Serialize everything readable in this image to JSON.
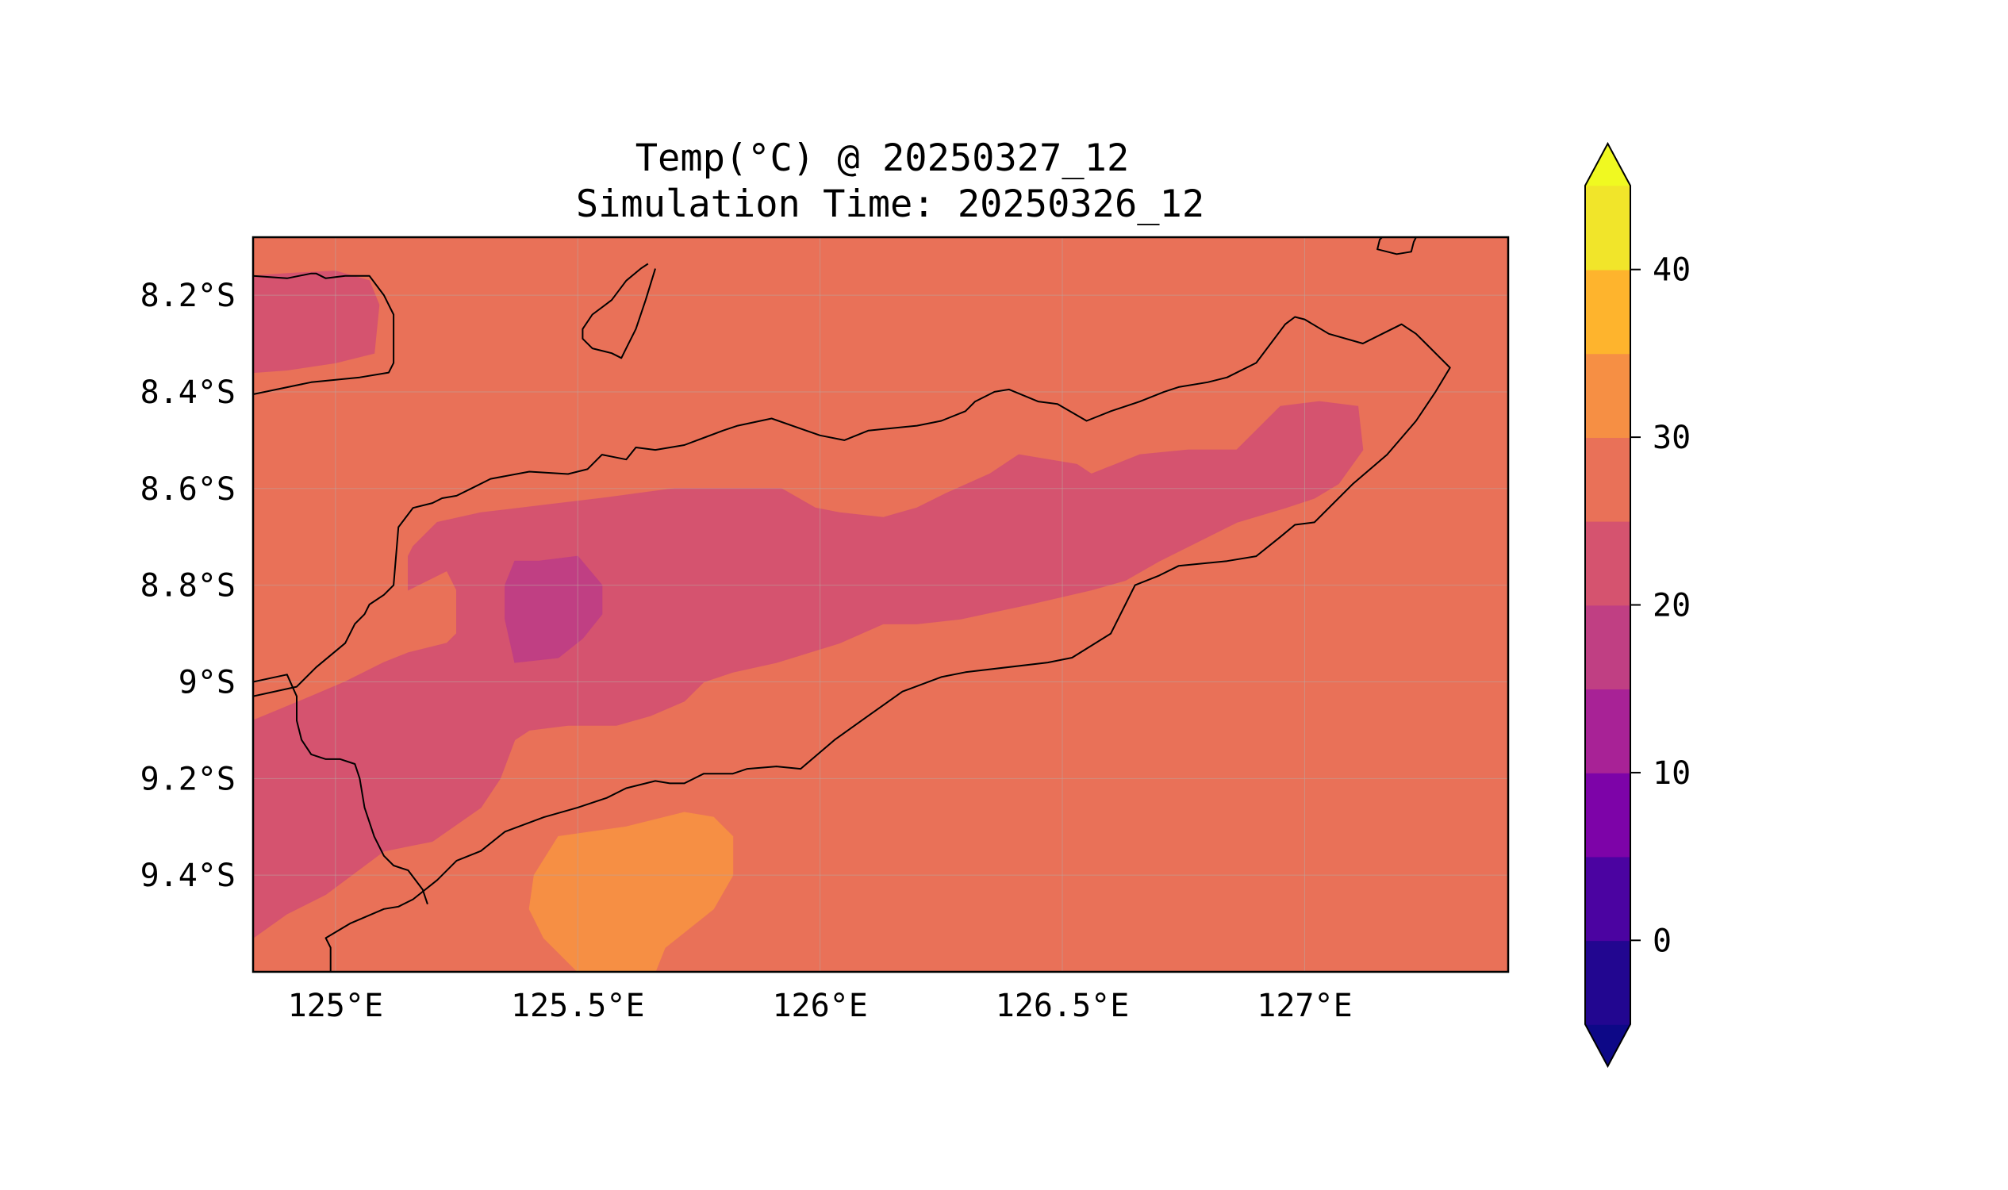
{
  "chart_data": {
    "type": "filled-contour-map",
    "title": "Temp(°C) @ 20250327_12",
    "subtitle": "Simulation Time: 20250326_12",
    "xlabel": "",
    "ylabel": "",
    "x_ticks": [
      {
        "value": 125.0,
        "label": "125°E"
      },
      {
        "value": 125.5,
        "label": "125.5°E"
      },
      {
        "value": 126.0,
        "label": "126°E"
      },
      {
        "value": 126.5,
        "label": "126.5°E"
      },
      {
        "value": 127.0,
        "label": "127°E"
      }
    ],
    "y_ticks": [
      {
        "value": -8.2,
        "label": "8.2°S"
      },
      {
        "value": -8.4,
        "label": "8.4°S"
      },
      {
        "value": -8.6,
        "label": "8.6°S"
      },
      {
        "value": -8.8,
        "label": "8.8°S"
      },
      {
        "value": -9.0,
        "label": "9°S"
      },
      {
        "value": -9.2,
        "label": "9.2°S"
      },
      {
        "value": -9.4,
        "label": "9.4°S"
      }
    ],
    "xlim": [
      124.83,
      127.42
    ],
    "ylim": [
      -9.6,
      -8.08
    ],
    "grid": true,
    "colormap": "plasma",
    "colorbar": {
      "extend": "both",
      "levels": [
        -5,
        0,
        5,
        10,
        15,
        20,
        25,
        30,
        35,
        40,
        45
      ],
      "colors": [
        "#0d0887",
        "#220690",
        "#4b03a1",
        "#7d03a8",
        "#a82296",
        "#c03f83",
        "#d5536f",
        "#e97158",
        "#f68f44",
        "#feb42d",
        "#f1e52a",
        "#f0f921"
      ],
      "ticks": [
        {
          "value": 0,
          "label": "0"
        },
        {
          "value": 10,
          "label": "10"
        },
        {
          "value": 20,
          "label": "20"
        },
        {
          "value": 30,
          "label": "30"
        },
        {
          "value": 40,
          "label": "40"
        }
      ]
    },
    "fields": [
      {
        "name": "background",
        "range": [
          25,
          30
        ],
        "color": "#e97158",
        "polygons": [
          [
            [
              124.83,
              -8.08
            ],
            [
              127.42,
              -8.08
            ],
            [
              127.42,
              -9.6
            ],
            [
              124.83,
              -9.6
            ]
          ]
        ]
      },
      {
        "name": "northwest-cool-patch",
        "range": [
          20,
          25
        ],
        "color": "#d5536f",
        "polygons": [
          [
            [
              124.83,
              -8.16
            ],
            [
              124.9,
              -8.155
            ],
            [
              125.0,
              -8.15
            ],
            [
              125.07,
              -8.17
            ],
            [
              125.09,
              -8.22
            ],
            [
              125.08,
              -8.32
            ],
            [
              125.0,
              -8.34
            ],
            [
              124.9,
              -8.355
            ],
            [
              124.83,
              -8.36
            ]
          ]
        ]
      },
      {
        "name": "timor-interior-cool",
        "range": [
          20,
          25
        ],
        "color": "#d5536f",
        "polygons": [
          [
            [
              127.11,
              -8.43
            ],
            [
              127.03,
              -8.42
            ],
            [
              126.95,
              -8.43
            ],
            [
              126.86,
              -8.52
            ],
            [
              126.76,
              -8.52
            ],
            [
              126.66,
              -8.53
            ],
            [
              126.56,
              -8.57
            ],
            [
              126.53,
              -8.55
            ],
            [
              126.47,
              -8.54
            ],
            [
              126.41,
              -8.53
            ],
            [
              126.35,
              -8.57
            ],
            [
              126.26,
              -8.61
            ],
            [
              126.2,
              -8.64
            ],
            [
              126.13,
              -8.66
            ],
            [
              126.04,
              -8.65
            ],
            [
              125.99,
              -8.64
            ],
            [
              125.92,
              -8.6
            ],
            [
              125.78,
              -8.6
            ],
            [
              125.7,
              -8.6
            ],
            [
              125.55,
              -8.62
            ],
            [
              125.3,
              -8.65
            ],
            [
              125.21,
              -8.67
            ],
            [
              125.16,
              -8.72
            ],
            [
              125.15,
              -8.74
            ],
            [
              125.15,
              -8.81
            ],
            [
              125.23,
              -8.77
            ],
            [
              125.25,
              -8.81
            ],
            [
              125.25,
              -8.9
            ],
            [
              125.23,
              -8.92
            ],
            [
              125.15,
              -8.94
            ],
            [
              125.1,
              -8.96
            ],
            [
              125.02,
              -9.0
            ],
            [
              124.95,
              -9.03
            ],
            [
              124.83,
              -9.08
            ],
            [
              124.83,
              -9.53
            ],
            [
              124.9,
              -9.48
            ],
            [
              124.98,
              -9.44
            ],
            [
              125.1,
              -9.35
            ],
            [
              125.2,
              -9.33
            ],
            [
              125.3,
              -9.26
            ],
            [
              125.34,
              -9.2
            ],
            [
              125.37,
              -9.12
            ],
            [
              125.4,
              -9.1
            ],
            [
              125.48,
              -9.09
            ],
            [
              125.58,
              -9.09
            ],
            [
              125.65,
              -9.07
            ],
            [
              125.72,
              -9.04
            ],
            [
              125.76,
              -9.0
            ],
            [
              125.82,
              -8.98
            ],
            [
              125.91,
              -8.96
            ],
            [
              126.04,
              -8.92
            ],
            [
              126.13,
              -8.88
            ],
            [
              126.2,
              -8.88
            ],
            [
              126.29,
              -8.87
            ],
            [
              126.43,
              -8.84
            ],
            [
              126.56,
              -8.81
            ],
            [
              126.63,
              -8.79
            ],
            [
              126.7,
              -8.75
            ],
            [
              126.8,
              -8.7
            ],
            [
              126.86,
              -8.67
            ],
            [
              126.96,
              -8.64
            ],
            [
              127.02,
              -8.62
            ],
            [
              127.07,
              -8.59
            ],
            [
              127.12,
              -8.52
            ]
          ]
        ]
      },
      {
        "name": "central-cold-core",
        "range": [
          15,
          20
        ],
        "color": "#c03f83",
        "polygons": [
          [
            [
              125.5,
              -8.74
            ],
            [
              125.55,
              -8.8
            ],
            [
              125.55,
              -8.86
            ],
            [
              125.51,
              -8.91
            ],
            [
              125.46,
              -8.95
            ],
            [
              125.37,
              -8.96
            ],
            [
              125.35,
              -8.87
            ],
            [
              125.35,
              -8.8
            ],
            [
              125.37,
              -8.75
            ],
            [
              125.42,
              -8.75
            ]
          ]
        ]
      },
      {
        "name": "southern-warm-patch",
        "range": [
          30,
          35
        ],
        "color": "#f68f44",
        "polygons": [
          [
            [
              125.59,
              -9.6
            ],
            [
              125.5,
              -9.6
            ],
            [
              125.43,
              -9.53
            ],
            [
              125.4,
              -9.47
            ],
            [
              125.41,
              -9.4
            ],
            [
              125.46,
              -9.32
            ],
            [
              125.6,
              -9.3
            ],
            [
              125.72,
              -9.27
            ],
            [
              125.78,
              -9.28
            ],
            [
              125.82,
              -9.32
            ],
            [
              125.82,
              -9.4
            ],
            [
              125.78,
              -9.47
            ],
            [
              125.68,
              -9.55
            ],
            [
              125.66,
              -9.6
            ]
          ]
        ]
      }
    ],
    "coastlines": [
      [
        [
          124.83,
          -8.16
        ],
        [
          124.9,
          -8.165
        ],
        [
          124.95,
          -8.155
        ],
        [
          124.96,
          -8.155
        ],
        [
          124.98,
          -8.165
        ],
        [
          125.02,
          -8.16
        ],
        [
          125.07,
          -8.16
        ],
        [
          125.1,
          -8.2
        ],
        [
          125.12,
          -8.24
        ],
        [
          125.12,
          -8.34
        ],
        [
          125.11,
          -8.36
        ],
        [
          125.05,
          -8.37
        ],
        [
          124.95,
          -8.38
        ],
        [
          124.83,
          -8.405
        ]
      ],
      [
        [
          125.66,
          -8.145
        ],
        [
          125.64,
          -8.21
        ],
        [
          125.62,
          -8.27
        ],
        [
          125.6,
          -8.31
        ],
        [
          125.59,
          -8.33
        ],
        [
          125.57,
          -8.32
        ],
        [
          125.53,
          -8.31
        ],
        [
          125.51,
          -8.29
        ],
        [
          125.51,
          -8.27
        ],
        [
          125.53,
          -8.24
        ],
        [
          125.57,
          -8.21
        ],
        [
          125.6,
          -8.17
        ],
        [
          125.63,
          -8.145
        ],
        [
          125.645,
          -8.135
        ]
      ],
      [
        [
          127.23,
          -8.08
        ],
        [
          127.225,
          -8.09
        ],
        [
          127.22,
          -8.11
        ],
        [
          127.19,
          -8.115
        ],
        [
          127.15,
          -8.105
        ],
        [
          127.155,
          -8.085
        ],
        [
          127.16,
          -8.08
        ]
      ],
      [
        [
          124.83,
          -9.03
        ],
        [
          124.92,
          -9.01
        ],
        [
          124.96,
          -8.97
        ],
        [
          125.02,
          -8.92
        ],
        [
          125.04,
          -8.88
        ],
        [
          125.06,
          -8.86
        ],
        [
          125.07,
          -8.84
        ],
        [
          125.1,
          -8.82
        ],
        [
          125.12,
          -8.8
        ],
        [
          125.13,
          -8.68
        ],
        [
          125.16,
          -8.64
        ],
        [
          125.2,
          -8.63
        ],
        [
          125.22,
          -8.62
        ],
        [
          125.25,
          -8.615
        ],
        [
          125.28,
          -8.6
        ],
        [
          125.32,
          -8.58
        ],
        [
          125.4,
          -8.565
        ],
        [
          125.48,
          -8.57
        ],
        [
          125.52,
          -8.56
        ],
        [
          125.55,
          -8.53
        ],
        [
          125.6,
          -8.54
        ],
        [
          125.62,
          -8.515
        ],
        [
          125.66,
          -8.52
        ],
        [
          125.72,
          -8.51
        ],
        [
          125.8,
          -8.48
        ],
        [
          125.83,
          -8.47
        ],
        [
          125.9,
          -8.455
        ],
        [
          126.0,
          -8.49
        ],
        [
          126.05,
          -8.5
        ],
        [
          126.1,
          -8.48
        ],
        [
          126.2,
          -8.47
        ],
        [
          126.25,
          -8.46
        ],
        [
          126.3,
          -8.44
        ],
        [
          126.32,
          -8.42
        ],
        [
          126.36,
          -8.4
        ],
        [
          126.39,
          -8.395
        ],
        [
          126.45,
          -8.42
        ],
        [
          126.49,
          -8.425
        ],
        [
          126.55,
          -8.46
        ],
        [
          126.6,
          -8.44
        ],
        [
          126.66,
          -8.42
        ],
        [
          126.71,
          -8.4
        ],
        [
          126.74,
          -8.39
        ],
        [
          126.8,
          -8.38
        ],
        [
          126.84,
          -8.37
        ],
        [
          126.9,
          -8.34
        ],
        [
          126.96,
          -8.26
        ],
        [
          126.98,
          -8.245
        ],
        [
          127.0,
          -8.25
        ],
        [
          127.05,
          -8.28
        ],
        [
          127.12,
          -8.3
        ],
        [
          127.16,
          -8.28
        ],
        [
          127.2,
          -8.26
        ],
        [
          127.23,
          -8.28
        ],
        [
          127.25,
          -8.3
        ],
        [
          127.28,
          -8.33
        ],
        [
          127.3,
          -8.35
        ],
        [
          127.27,
          -8.4
        ],
        [
          127.23,
          -8.46
        ],
        [
          127.17,
          -8.53
        ],
        [
          127.1,
          -8.59
        ],
        [
          127.02,
          -8.67
        ],
        [
          126.98,
          -8.675
        ],
        [
          126.95,
          -8.7
        ],
        [
          126.9,
          -8.74
        ],
        [
          126.84,
          -8.75
        ],
        [
          126.74,
          -8.76
        ],
        [
          126.7,
          -8.78
        ],
        [
          126.65,
          -8.8
        ],
        [
          126.6,
          -8.9
        ],
        [
          126.52,
          -8.95
        ],
        [
          126.47,
          -8.96
        ],
        [
          126.3,
          -8.98
        ],
        [
          126.25,
          -8.99
        ],
        [
          126.17,
          -9.02
        ],
        [
          126.1,
          -9.07
        ],
        [
          126.03,
          -9.12
        ],
        [
          125.96,
          -9.18
        ],
        [
          125.91,
          -9.175
        ],
        [
          125.85,
          -9.18
        ],
        [
          125.82,
          -9.19
        ],
        [
          125.76,
          -9.19
        ],
        [
          125.72,
          -9.21
        ],
        [
          125.69,
          -9.21
        ],
        [
          125.66,
          -9.205
        ],
        [
          125.6,
          -9.22
        ],
        [
          125.56,
          -9.24
        ],
        [
          125.5,
          -9.26
        ],
        [
          125.43,
          -9.28
        ],
        [
          125.35,
          -9.31
        ],
        [
          125.3,
          -9.35
        ],
        [
          125.25,
          -9.37
        ],
        [
          125.21,
          -9.41
        ],
        [
          125.16,
          -9.45
        ],
        [
          125.13,
          -9.465
        ],
        [
          125.1,
          -9.47
        ],
        [
          125.03,
          -9.5
        ],
        [
          124.98,
          -9.53
        ],
        [
          124.99,
          -9.55
        ],
        [
          124.99,
          -9.6
        ]
      ],
      [
        [
          125.19,
          -9.46
        ],
        [
          125.18,
          -9.43
        ],
        [
          125.15,
          -9.39
        ],
        [
          125.12,
          -9.38
        ],
        [
          125.1,
          -9.36
        ],
        [
          125.08,
          -9.32
        ],
        [
          125.06,
          -9.26
        ],
        [
          125.05,
          -9.2
        ],
        [
          125.04,
          -9.17
        ],
        [
          125.01,
          -9.16
        ],
        [
          124.98,
          -9.16
        ],
        [
          124.95,
          -9.15
        ],
        [
          124.93,
          -9.12
        ],
        [
          124.92,
          -9.08
        ],
        [
          124.92,
          -9.03
        ],
        [
          124.9,
          -8.985
        ],
        [
          124.83,
          -9.0
        ]
      ]
    ]
  }
}
